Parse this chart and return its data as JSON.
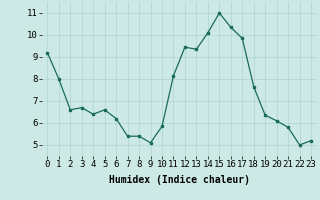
{
  "x": [
    0,
    1,
    2,
    3,
    4,
    5,
    6,
    7,
    8,
    9,
    10,
    11,
    12,
    13,
    14,
    15,
    16,
    17,
    18,
    19,
    20,
    21,
    22,
    23
  ],
  "y": [
    9.2,
    8.0,
    6.6,
    6.7,
    6.4,
    6.6,
    6.2,
    5.4,
    5.4,
    5.1,
    5.85,
    8.15,
    9.45,
    9.35,
    10.1,
    11.0,
    10.35,
    9.85,
    7.65,
    6.35,
    6.1,
    5.8,
    5.0,
    5.2
  ],
  "line_color": "#1a6b5e",
  "marker_color": "#1a6b5e",
  "bg_color": "#cce9e6",
  "grid_color": "#aed4d0",
  "xlabel": "Humidex (Indice chaleur)",
  "yticks": [
    5,
    6,
    7,
    8,
    9,
    10,
    11
  ],
  "xtick_labels": [
    "0",
    "1",
    "2",
    "3",
    "4",
    "5",
    "6",
    "7",
    "8",
    "9",
    "10",
    "11",
    "12",
    "13",
    "14",
    "15",
    "16",
    "17",
    "18",
    "19",
    "20",
    "21",
    "22",
    "23"
  ],
  "ylim": [
    4.5,
    11.5
  ],
  "xlim": [
    -0.5,
    23.5
  ],
  "xlabel_fontsize": 7,
  "tick_fontsize": 6.5
}
